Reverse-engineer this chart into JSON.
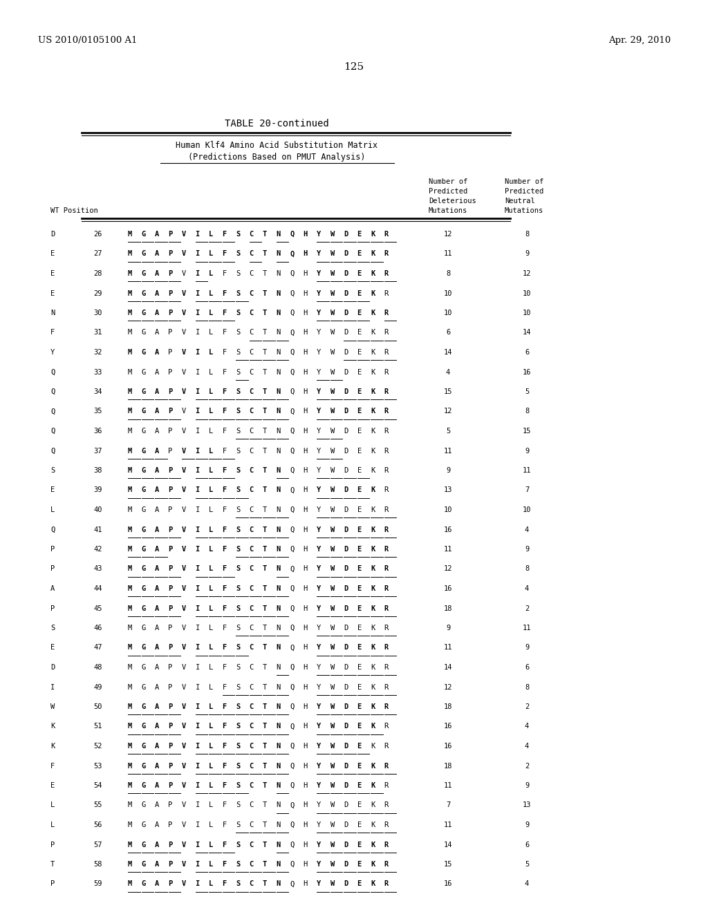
{
  "header_left": "US 2010/0105100 A1",
  "header_right": "Apr. 29, 2010",
  "page_number": "125",
  "table_title": "TABLE 20-continued",
  "subtitle1": "Human Klf4 Amino Acid Substitution Matrix",
  "subtitle2": "(Predictions Based on PMUT Analysis)",
  "rows": [
    {
      "wt": "D",
      "pos": "26",
      "seq": "MGAPVILFSCTNQHYWDEKR",
      "del": "12",
      "neu": "8",
      "bold_chars": [
        0,
        1,
        2,
        3,
        4,
        5,
        6,
        7,
        8,
        9,
        10,
        11,
        12,
        13,
        14,
        15,
        16,
        17,
        18,
        19
      ],
      "underline_chars": [
        0,
        1,
        2,
        3,
        5,
        6,
        7,
        9,
        11,
        14,
        15,
        16,
        17,
        18,
        19
      ]
    },
    {
      "wt": "E",
      "pos": "27",
      "seq": "MGAPVILFSCTNQHYWDEKR",
      "del": "11",
      "neu": "9",
      "bold_chars": [
        0,
        1,
        2,
        3,
        4,
        5,
        6,
        7,
        8,
        9,
        10,
        11,
        12,
        13,
        14,
        15,
        16,
        17,
        18,
        19
      ],
      "underline_chars": [
        0,
        1,
        2,
        3,
        5,
        6,
        7,
        9,
        11,
        14,
        15,
        16,
        17,
        18
      ]
    },
    {
      "wt": "E",
      "pos": "28",
      "seq": "MGAPVILFSCTNQHYWDEKR",
      "del": "8",
      "neu": "12",
      "bold_chars": [
        0,
        1,
        2,
        3,
        5,
        6,
        14,
        15,
        16,
        17,
        18,
        19
      ],
      "underline_chars": [
        0,
        1,
        2,
        3,
        5,
        14,
        15,
        16,
        17,
        18,
        19
      ]
    },
    {
      "wt": "E",
      "pos": "29",
      "seq": "MGAPVILFSCTNQHYWDEKR",
      "del": "10",
      "neu": "10",
      "bold_chars": [
        0,
        1,
        2,
        3,
        4,
        5,
        6,
        7,
        8,
        9,
        10,
        11,
        14,
        15,
        16,
        17,
        18
      ],
      "underline_chars": [
        0,
        1,
        2,
        3,
        5,
        6,
        7,
        8,
        14,
        15,
        16,
        17
      ]
    },
    {
      "wt": "N",
      "pos": "30",
      "seq": "MGAPVILFSCTNQHYWDEKR",
      "del": "10",
      "neu": "10",
      "bold_chars": [
        0,
        1,
        2,
        3,
        4,
        5,
        6,
        7,
        8,
        9,
        10,
        11,
        14,
        15,
        16,
        17,
        18,
        19
      ],
      "underline_chars": [
        0,
        1,
        2,
        3,
        5,
        6,
        7,
        14,
        15,
        16,
        17,
        19
      ]
    },
    {
      "wt": "F",
      "pos": "31",
      "seq": "MGAPVILFSCTNQHYWDEKR",
      "del": "6",
      "neu": "14",
      "bold_chars": [],
      "underline_chars": [
        9,
        10,
        11,
        16,
        17,
        18,
        19
      ]
    },
    {
      "wt": "Y",
      "pos": "32",
      "seq": "MGAPVILFSCTNQHYWDEKR",
      "del": "14",
      "neu": "6",
      "bold_chars": [
        0,
        1,
        2,
        4,
        5,
        6
      ],
      "underline_chars": [
        8,
        9,
        10,
        11,
        16,
        17,
        18,
        19
      ]
    },
    {
      "wt": "Q",
      "pos": "33",
      "seq": "MGAPVILFSCTNQHYWDEKR",
      "del": "4",
      "neu": "16",
      "bold_chars": [],
      "underline_chars": [
        8,
        14,
        15
      ]
    },
    {
      "wt": "Q",
      "pos": "34",
      "seq": "MGAPVILFSCTNQHYWDEKR",
      "del": "15",
      "neu": "5",
      "bold_chars": [
        0,
        1,
        2,
        3,
        4,
        5,
        6,
        7,
        8,
        9,
        10,
        11,
        14,
        15,
        16,
        17,
        18,
        19
      ],
      "underline_chars": [
        0,
        1,
        2,
        3,
        5,
        6,
        7,
        8,
        9,
        10,
        11,
        14,
        15,
        16,
        17,
        18,
        19
      ]
    },
    {
      "wt": "Q",
      "pos": "35",
      "seq": "MGAPVILFSCTNQHYWDEKR",
      "del": "12",
      "neu": "8",
      "bold_chars": [
        0,
        1,
        2,
        3,
        5,
        6,
        7,
        8,
        9,
        10,
        11,
        14,
        15,
        16,
        17,
        18,
        19
      ],
      "underline_chars": [
        0,
        1,
        2,
        3,
        5,
        6,
        7,
        8,
        9,
        10,
        11,
        14,
        15,
        16,
        17,
        18,
        19
      ]
    },
    {
      "wt": "Q",
      "pos": "36",
      "seq": "MGAPVILFSCTNQHYWDEKR",
      "del": "5",
      "neu": "15",
      "bold_chars": [],
      "underline_chars": [
        8,
        9,
        10,
        11,
        14,
        15
      ]
    },
    {
      "wt": "Q",
      "pos": "37",
      "seq": "MGAPVILFSCTNQHYWDEKR",
      "del": "11",
      "neu": "9",
      "bold_chars": [
        0,
        1,
        2,
        4,
        5,
        6
      ],
      "underline_chars": [
        0,
        1,
        2,
        4,
        5,
        6,
        7,
        14,
        15
      ]
    },
    {
      "wt": "S",
      "pos": "38",
      "seq": "MGAPVILFSCTNQHYWDEKR",
      "del": "9",
      "neu": "11",
      "bold_chars": [
        0,
        1,
        2,
        3,
        4,
        5,
        6,
        7,
        8,
        9,
        10,
        11
      ],
      "underline_chars": [
        0,
        1,
        2,
        3,
        5,
        6,
        7,
        11,
        14,
        15,
        16,
        17
      ]
    },
    {
      "wt": "E",
      "pos": "39",
      "seq": "MGAPVILFSCTNQHYWDEKR",
      "del": "13",
      "neu": "7",
      "bold_chars": [
        0,
        1,
        2,
        3,
        4,
        5,
        6,
        7,
        8,
        9,
        10,
        11,
        14,
        15,
        16,
        17,
        18
      ],
      "underline_chars": [
        0,
        1,
        2,
        3,
        5,
        6,
        7,
        8,
        14,
        15,
        16,
        17
      ]
    },
    {
      "wt": "L",
      "pos": "40",
      "seq": "MGAPVILFSCTNQHYWDEKR",
      "del": "10",
      "neu": "10",
      "bold_chars": [],
      "underline_chars": [
        8,
        9,
        10,
        11,
        14,
        15,
        16,
        17,
        18,
        19
      ]
    },
    {
      "wt": "Q",
      "pos": "41",
      "seq": "MGAPVILFSCTNQHYWDEKR",
      "del": "16",
      "neu": "4",
      "bold_chars": [
        0,
        1,
        2,
        3,
        4,
        5,
        6,
        7,
        8,
        9,
        10,
        11,
        14,
        15,
        16,
        17,
        18,
        19
      ],
      "underline_chars": [
        0,
        1,
        2,
        3,
        5,
        6,
        7,
        8,
        9,
        10,
        11,
        14,
        15,
        16,
        17,
        18,
        19
      ]
    },
    {
      "wt": "P",
      "pos": "42",
      "seq": "MGAPVILFSCTNQHYWDEKR",
      "del": "11",
      "neu": "9",
      "bold_chars": [
        0,
        1,
        2,
        3,
        4,
        5,
        6,
        7,
        8,
        9,
        10,
        11,
        14,
        15,
        16,
        17,
        18,
        19
      ],
      "underline_chars": [
        0,
        1,
        2,
        8,
        9,
        10,
        11,
        14,
        15,
        16,
        17,
        18,
        19
      ]
    },
    {
      "wt": "P",
      "pos": "43",
      "seq": "MGAPVILFSCTNQHYWDEKR",
      "del": "12",
      "neu": "8",
      "bold_chars": [
        0,
        1,
        2,
        3,
        4,
        5,
        6,
        7,
        8,
        9,
        10,
        11,
        14,
        15,
        16,
        17,
        18,
        19
      ],
      "underline_chars": [
        0,
        1,
        2,
        3,
        5,
        6,
        7,
        11,
        14,
        15,
        16,
        17,
        18,
        19
      ]
    },
    {
      "wt": "A",
      "pos": "44",
      "seq": "MGAPVILFSCTNQHYWDEKR",
      "del": "16",
      "neu": "4",
      "bold_chars": [
        0,
        1,
        2,
        3,
        4,
        5,
        6,
        7,
        8,
        9,
        10,
        11,
        14,
        15,
        16,
        17,
        18,
        19
      ],
      "underline_chars": [
        0,
        1,
        2,
        3,
        5,
        6,
        7,
        8,
        9,
        10,
        11,
        14,
        15,
        16,
        17,
        18,
        19
      ]
    },
    {
      "wt": "P",
      "pos": "45",
      "seq": "MGAPVILFSCTNQHYWDEKR",
      "del": "18",
      "neu": "2",
      "bold_chars": [
        0,
        1,
        2,
        3,
        4,
        5,
        6,
        7,
        8,
        9,
        10,
        11,
        14,
        15,
        16,
        17,
        18,
        19
      ],
      "underline_chars": [
        0,
        1,
        2,
        3,
        5,
        6,
        7,
        8,
        9,
        10,
        11,
        14,
        15,
        16,
        17,
        18,
        19
      ]
    },
    {
      "wt": "S",
      "pos": "46",
      "seq": "MGAPVILFSCTNQHYWDEKR",
      "del": "9",
      "neu": "11",
      "bold_chars": [],
      "underline_chars": [
        8,
        9,
        10,
        11,
        14,
        15,
        16,
        17,
        18,
        19
      ]
    },
    {
      "wt": "E",
      "pos": "47",
      "seq": "MGAPVILFSCTNQHYWDEKR",
      "del": "11",
      "neu": "9",
      "bold_chars": [
        0,
        1,
        2,
        3,
        4,
        5,
        6,
        7,
        8,
        9,
        10,
        11,
        14,
        15,
        16,
        17,
        18,
        19
      ],
      "underline_chars": [
        0,
        1,
        2,
        3,
        5,
        6,
        7,
        8,
        14,
        15,
        16,
        17,
        18,
        19
      ]
    },
    {
      "wt": "D",
      "pos": "48",
      "seq": "MGAPVILFSCTNQHYWDEKR",
      "del": "14",
      "neu": "6",
      "bold_chars": [],
      "underline_chars": [
        11,
        14,
        15,
        16,
        17,
        18,
        19
      ]
    },
    {
      "wt": "I",
      "pos": "49",
      "seq": "MGAPVILFSCTNQHYWDEKR",
      "del": "12",
      "neu": "8",
      "bold_chars": [],
      "underline_chars": [
        7,
        8,
        9,
        10,
        11,
        14,
        15,
        16,
        17,
        18,
        19
      ]
    },
    {
      "wt": "W",
      "pos": "50",
      "seq": "MGAPVILFSCTNQHYWDEKR",
      "del": "18",
      "neu": "2",
      "bold_chars": [
        0,
        1,
        2,
        3,
        4,
        5,
        6,
        7,
        8,
        9,
        10,
        11,
        14,
        15,
        16,
        17,
        18,
        19
      ],
      "underline_chars": [
        0,
        1,
        2,
        3,
        5,
        6,
        7,
        8,
        9,
        10,
        11,
        14,
        15,
        16,
        17,
        18,
        19
      ]
    },
    {
      "wt": "K",
      "pos": "51",
      "seq": "MGAPVILFSCTNQHYWDEKR",
      "del": "16",
      "neu": "4",
      "bold_chars": [
        0,
        1,
        2,
        3,
        4,
        5,
        6,
        7,
        8,
        9,
        10,
        11,
        14,
        15,
        16,
        17,
        18
      ],
      "underline_chars": [
        0,
        1,
        2,
        3,
        5,
        6,
        7,
        8,
        9,
        10,
        11,
        14,
        15,
        16,
        17,
        18
      ]
    },
    {
      "wt": "K",
      "pos": "52",
      "seq": "MGAPVILFSCTNQHYWDEKR",
      "del": "16",
      "neu": "4",
      "bold_chars": [
        0,
        1,
        2,
        3,
        4,
        5,
        6,
        7,
        8,
        9,
        10,
        11,
        14,
        15,
        16,
        17
      ],
      "underline_chars": [
        0,
        1,
        2,
        3,
        5,
        6,
        7,
        8,
        9,
        10,
        11,
        14,
        15,
        16,
        17
      ]
    },
    {
      "wt": "F",
      "pos": "53",
      "seq": "MGAPVILFSCTNQHYWDEKR",
      "del": "18",
      "neu": "2",
      "bold_chars": [
        0,
        1,
        2,
        3,
        4,
        5,
        6,
        7,
        8,
        9,
        10,
        11,
        14,
        15,
        16,
        17,
        18,
        19
      ],
      "underline_chars": [
        0,
        1,
        2,
        3,
        5,
        6,
        7,
        8,
        9,
        10,
        11,
        14,
        15,
        16,
        17,
        18,
        19
      ]
    },
    {
      "wt": "E",
      "pos": "54",
      "seq": "MGAPVILFSCTNQHYWDEKR",
      "del": "11",
      "neu": "9",
      "bold_chars": [
        0,
        1,
        2,
        3,
        4,
        5,
        6,
        7,
        8,
        9,
        10,
        11,
        14,
        15,
        16,
        17,
        18
      ],
      "underline_chars": [
        0,
        1,
        2,
        3,
        5,
        6,
        7,
        8,
        11,
        14,
        15,
        16,
        17,
        18
      ]
    },
    {
      "wt": "L",
      "pos": "55",
      "seq": "MGAPVILFSCTNQHYWDEKR",
      "del": "7",
      "neu": "13",
      "bold_chars": [],
      "underline_chars": [
        11,
        14,
        15,
        16,
        17,
        18,
        19
      ]
    },
    {
      "wt": "L",
      "pos": "56",
      "seq": "MGAPVILFSCTNQHYWDEKR",
      "del": "11",
      "neu": "9",
      "bold_chars": [],
      "underline_chars": [
        8,
        9,
        10,
        11,
        14,
        15,
        16,
        17,
        18,
        19
      ]
    },
    {
      "wt": "P",
      "pos": "57",
      "seq": "MGAPVILFSCTNQHYWDEKR",
      "del": "14",
      "neu": "6",
      "bold_chars": [
        0,
        1,
        2,
        3,
        4,
        5,
        6,
        7,
        8,
        9,
        10,
        11,
        14,
        15,
        16,
        17,
        18,
        19
      ],
      "underline_chars": [
        0,
        1,
        2,
        3,
        5,
        6,
        7,
        11,
        14,
        15,
        16,
        17,
        18,
        19
      ]
    },
    {
      "wt": "T",
      "pos": "58",
      "seq": "MGAPVILFSCTNQHYWDEKR",
      "del": "15",
      "neu": "5",
      "bold_chars": [
        0,
        1,
        2,
        3,
        4,
        5,
        6,
        7,
        8,
        9,
        10,
        11,
        14,
        15,
        16,
        17,
        18,
        19
      ],
      "underline_chars": [
        0,
        1,
        2,
        3,
        5,
        6,
        7,
        8,
        9,
        10,
        11,
        14,
        15,
        16,
        17,
        18,
        19
      ]
    },
    {
      "wt": "P",
      "pos": "59",
      "seq": "MGAPVILFSCTNQHYWDEKR",
      "del": "16",
      "neu": "4",
      "bold_chars": [
        0,
        1,
        2,
        3,
        4,
        5,
        6,
        7,
        8,
        9,
        10,
        11,
        14,
        15,
        16,
        17,
        18,
        19
      ],
      "underline_chars": [
        0,
        1,
        2,
        3,
        5,
        6,
        7,
        8,
        9,
        10,
        11,
        14,
        15,
        16,
        17,
        18,
        19
      ]
    }
  ]
}
